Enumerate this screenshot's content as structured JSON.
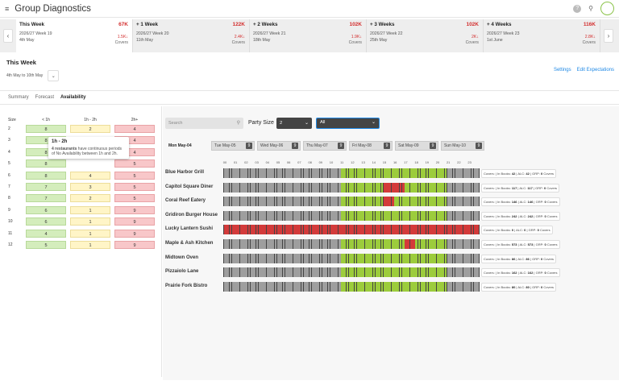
{
  "header": {
    "menu_icon": "≡",
    "title": "Group Diagnostics",
    "help_icon": "?",
    "search_icon": "⚲"
  },
  "weeks": {
    "prev": "‹",
    "next": "›",
    "items": [
      {
        "name": "This Week",
        "value": "67K",
        "sub1": "2026/27 Week 19",
        "sub2": "4th May",
        "change": "1.5K↓",
        "covers": "Covers"
      },
      {
        "name": "+ 1 Week",
        "value": "122K",
        "sub1": "2026/27 Week 20",
        "sub2": "11th May",
        "change": "2.4K↓",
        "covers": "Covers"
      },
      {
        "name": "+ 2 Weeks",
        "value": "102K",
        "sub1": "2026/27 Week 21",
        "sub2": "18th May",
        "change": "1.9K↓",
        "covers": "Covers"
      },
      {
        "name": "+ 3 Weeks",
        "value": "102K",
        "sub1": "2026/27 Week 22",
        "sub2": "25th May",
        "change": "2K↓",
        "covers": "Covers"
      },
      {
        "name": "+ 4 Weeks",
        "value": "116K",
        "sub1": "2026/27 Week 23",
        "sub2": "1st June",
        "change": "2.8K↓",
        "covers": "Covers"
      }
    ]
  },
  "section": {
    "title": "This Week",
    "range": "4th May to 10th May",
    "dropdown_icon": "⌄"
  },
  "links": {
    "settings": "Settings",
    "edit": "Edit Expectations"
  },
  "tabs": {
    "summary": "Summary",
    "forecast": "Forecast",
    "availability": "Availability"
  },
  "left": {
    "col_size": "Size",
    "col_a": "< 1h",
    "col_b": "1h - 2h",
    "col_c": "2h+",
    "rows": [
      {
        "size": "2",
        "a": "8",
        "b": "2",
        "c": "4"
      },
      {
        "size": "3",
        "a": "8",
        "b": "",
        "c": "4"
      },
      {
        "size": "4",
        "a": "8",
        "b": "",
        "c": "4"
      },
      {
        "size": "5",
        "a": "8",
        "b": "",
        "c": "5"
      },
      {
        "size": "6",
        "a": "8",
        "b": "4",
        "c": "5"
      },
      {
        "size": "7",
        "a": "7",
        "b": "3",
        "c": "5"
      },
      {
        "size": "8",
        "a": "7",
        "b": "2",
        "c": "5"
      },
      {
        "size": "9",
        "a": "6",
        "b": "1",
        "c": "9"
      },
      {
        "size": "10",
        "a": "6",
        "b": "1",
        "c": "9"
      },
      {
        "size": "11",
        "a": "4",
        "b": "1",
        "c": "9"
      },
      {
        "size": "12",
        "a": "5",
        "b": "1",
        "c": "9"
      }
    ],
    "tooltip": {
      "title": "1h - 2h",
      "bold": "4 restaurants",
      "text": "have continuous periods of No Availability between 1h and 2h."
    }
  },
  "filters": {
    "search_placeholder": "Search",
    "party_label": "Party Size",
    "party_value": "2",
    "all_value": "All",
    "chev": "⌄",
    "search_icon": "⚲"
  },
  "days": [
    {
      "label": "Mon May-04",
      "badge": ""
    },
    {
      "label": "Tue May-05",
      "badge": "9"
    },
    {
      "label": "Wed May-06",
      "badge": "9"
    },
    {
      "label": "Thu May-07",
      "badge": "9"
    },
    {
      "label": "Fri May-08",
      "badge": "9"
    },
    {
      "label": "Sat May-09",
      "badge": "9"
    },
    {
      "label": "Sun May-10",
      "badge": "9"
    }
  ],
  "hours": [
    "00",
    "01",
    "02",
    "03",
    "04",
    "05",
    "06",
    "07",
    "08",
    "09",
    "10",
    "11",
    "12",
    "13",
    "14",
    "15",
    "16",
    "17",
    "18",
    "19",
    "20",
    "21",
    "22",
    "23"
  ],
  "colors": {
    "closed": "#9e9e9e",
    "available": "#9ccc3c",
    "none": "#d33a3a"
  },
  "restaurants": [
    {
      "name": "Blue Harbor Grill",
      "in_books": "42",
      "alc": "42",
      "grp": "0",
      "red": []
    },
    {
      "name": "Capitol Square Diner",
      "in_books": "117",
      "alc": "117",
      "grp": "0",
      "red": [
        15,
        16
      ]
    },
    {
      "name": "Coral Reef Eatery",
      "in_books": "146",
      "alc": "146",
      "grp": "0",
      "red": [
        15
      ]
    },
    {
      "name": "Gridiron Burger House",
      "in_books": "242",
      "alc": "242",
      "grp": "0",
      "red": []
    },
    {
      "name": "Lucky Lantern Sushi",
      "in_books": "0",
      "alc": "0",
      "grp": "0",
      "red": "all"
    },
    {
      "name": "Maple & Ash Kitchen",
      "in_books": "573",
      "alc": "573",
      "grp": "0",
      "red": [
        17
      ]
    },
    {
      "name": "Midtown Oven",
      "in_books": "86",
      "alc": "86",
      "grp": "0",
      "red": []
    },
    {
      "name": "Pizzaiolo Lane",
      "in_books": "162",
      "alc": "162",
      "grp": "0",
      "red": []
    },
    {
      "name": "Prairie Fork Bistro",
      "in_books": "80",
      "alc": "80",
      "grp": "0",
      "red": []
    }
  ],
  "summary_labels": {
    "covers": "Covers:",
    "in_books": "In Books:",
    "alc": "ALC:",
    "grp": "GRP:",
    "covers_suffix": "Covers"
  }
}
